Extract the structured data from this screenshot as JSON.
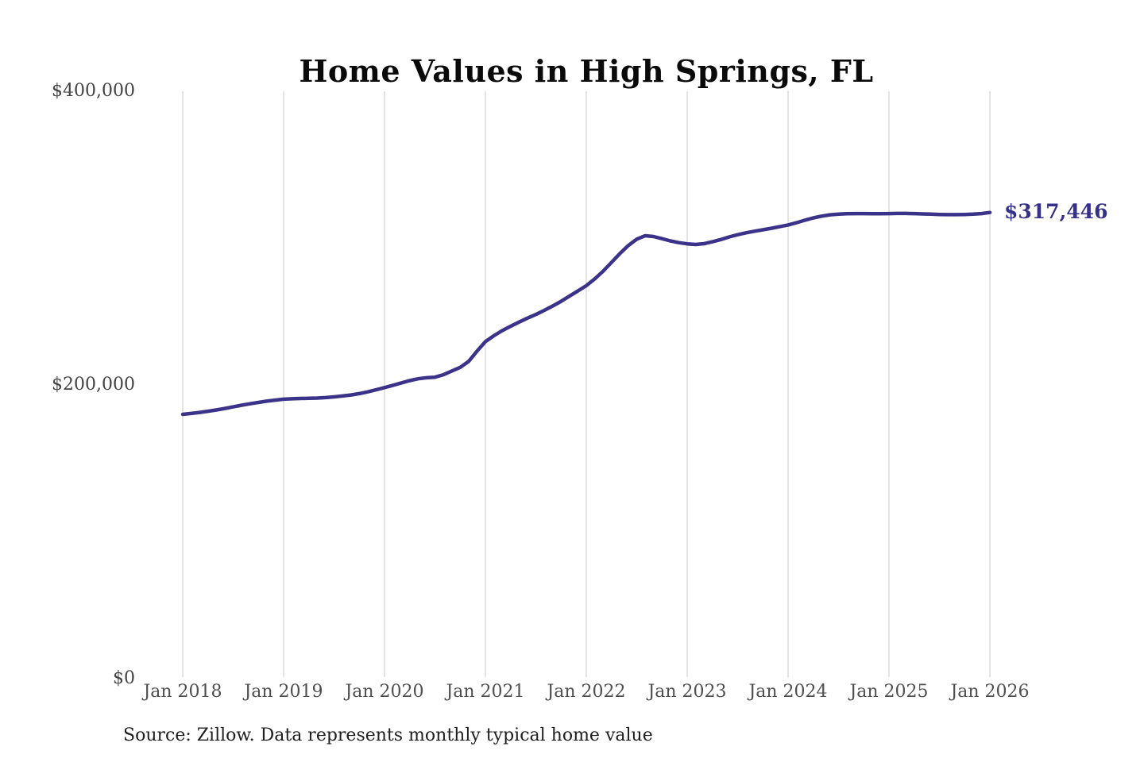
{
  "source_note": "Source: Zillow. Data represents monthly typical home value",
  "chart_data": {
    "type": "line",
    "title": "Home Values in High Springs, FL",
    "series_name": "Monthly typical home value",
    "x_ticks": [
      "Jan 2018",
      "Jan 2019",
      "Jan 2020",
      "Jan 2021",
      "Jan 2022",
      "Jan 2023",
      "Jan 2024",
      "Jan 2025",
      "Jan 2026"
    ],
    "y_ticks": [
      {
        "label": "$400,000",
        "value": 400000
      },
      {
        "label": "$200,000",
        "value": 200000
      },
      {
        "label": "$0",
        "value": 0
      }
    ],
    "ylim": [
      0,
      400000
    ],
    "x_start": "Jan 2018",
    "x_end": "Jan 2026",
    "x_interval": "monthly",
    "grid": "vertical-only",
    "legend": "none",
    "end_label": "$317,446",
    "end_value": 317446,
    "values": [
      180000,
      180600,
      181300,
      182100,
      183000,
      184000,
      185100,
      186200,
      187200,
      188100,
      189000,
      189700,
      190300,
      190600,
      190800,
      190900,
      191100,
      191400,
      191900,
      192500,
      193200,
      194100,
      195300,
      196700,
      198200,
      199800,
      201400,
      203000,
      204200,
      204900,
      205300,
      207000,
      209500,
      212000,
      216000,
      223000,
      229500,
      233500,
      237000,
      240000,
      242800,
      245500,
      248000,
      250800,
      253800,
      257000,
      260500,
      264000,
      267600,
      272200,
      277500,
      283500,
      289500,
      295000,
      299300,
      301600,
      301100,
      299600,
      298100,
      296900,
      296100,
      295700,
      296200,
      297500,
      299000,
      300800,
      302300,
      303600,
      304700,
      305700,
      306700,
      307800,
      309000,
      310500,
      312200,
      313800,
      315000,
      315900,
      316400,
      316600,
      316700,
      316700,
      316600,
      316600,
      316700,
      316800,
      316800,
      316700,
      316500,
      316300,
      316100,
      316000,
      316000,
      316100,
      316300,
      316700,
      317446
    ],
    "colors": {
      "line": "#3b3389",
      "end_label": "#353088",
      "grid": "#c9c9c9",
      "title": "#0a0a0a",
      "tick_text": "#4f4f4f",
      "source_text": "#1e1e1e",
      "background": "#ffffff"
    }
  }
}
